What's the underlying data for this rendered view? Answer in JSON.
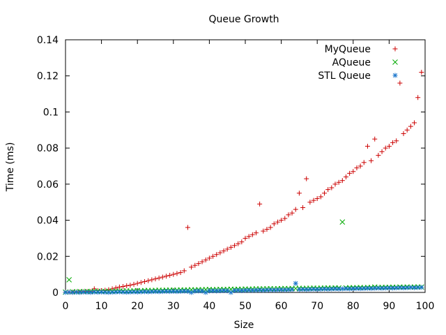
{
  "chart_data": {
    "type": "scatter",
    "title": "Queue Growth",
    "xlabel": "Size",
    "ylabel": "Time (ms)",
    "xlim": [
      0,
      100
    ],
    "ylim": [
      0,
      0.14
    ],
    "xticks": [
      "0",
      "10",
      "20",
      "30",
      "40",
      "50",
      "60",
      "70",
      "80",
      "90",
      "100"
    ],
    "yticks": [
      "0",
      "0.02",
      "0.04",
      "0.06",
      "0.08",
      "0.1",
      "0.12",
      "0.14"
    ],
    "grid": false,
    "legend_position": "top-right",
    "series": [
      {
        "name": "MyQueue",
        "marker": "plus",
        "color": "#cc0000",
        "x": [
          0,
          1,
          2,
          3,
          4,
          5,
          6,
          7,
          8,
          9,
          10,
          11,
          12,
          13,
          14,
          15,
          16,
          17,
          18,
          19,
          20,
          21,
          22,
          23,
          24,
          25,
          26,
          27,
          28,
          29,
          30,
          31,
          32,
          33,
          34,
          35,
          36,
          37,
          38,
          39,
          40,
          41,
          42,
          43,
          44,
          45,
          46,
          47,
          48,
          49,
          50,
          51,
          52,
          53,
          54,
          55,
          56,
          57,
          58,
          59,
          60,
          61,
          62,
          63,
          64,
          65,
          66,
          67,
          68,
          69,
          70,
          71,
          72,
          73,
          74,
          75,
          76,
          77,
          78,
          79,
          80,
          81,
          82,
          83,
          84,
          85,
          86,
          87,
          88,
          89,
          90,
          91,
          92,
          93,
          94,
          95,
          96,
          97,
          98,
          99
        ],
        "y": [
          0.0001,
          0.0002,
          0.0002,
          0.0003,
          0.0003,
          0.0004,
          0.0005,
          0.0005,
          0.002,
          0.001,
          0.001,
          0.0012,
          0.0015,
          0.002,
          0.0025,
          0.003,
          0.0033,
          0.0037,
          0.004,
          0.0045,
          0.005,
          0.0055,
          0.006,
          0.0065,
          0.007,
          0.0075,
          0.008,
          0.0085,
          0.009,
          0.0095,
          0.01,
          0.0105,
          0.011,
          0.012,
          0.036,
          0.014,
          0.015,
          0.016,
          0.017,
          0.018,
          0.019,
          0.02,
          0.021,
          0.022,
          0.023,
          0.024,
          0.025,
          0.026,
          0.027,
          0.028,
          0.03,
          0.031,
          0.032,
          0.033,
          0.049,
          0.034,
          0.035,
          0.036,
          0.038,
          0.039,
          0.04,
          0.041,
          0.043,
          0.044,
          0.046,
          0.055,
          0.047,
          0.063,
          0.05,
          0.051,
          0.052,
          0.053,
          0.055,
          0.057,
          0.058,
          0.06,
          0.061,
          0.062,
          0.064,
          0.066,
          0.067,
          0.069,
          0.07,
          0.072,
          0.081,
          0.073,
          0.085,
          0.076,
          0.078,
          0.08,
          0.081,
          0.083,
          0.084,
          0.116,
          0.088,
          0.09,
          0.092,
          0.094,
          0.108,
          0.122
        ]
      },
      {
        "name": "AQueue",
        "marker": "cross",
        "color": "#00aa00",
        "x": [
          0,
          1,
          2,
          3,
          4,
          5,
          6,
          7,
          8,
          9,
          10,
          11,
          12,
          13,
          14,
          15,
          16,
          17,
          18,
          19,
          20,
          21,
          22,
          23,
          24,
          25,
          26,
          27,
          28,
          29,
          30,
          31,
          32,
          33,
          34,
          35,
          36,
          37,
          38,
          39,
          40,
          41,
          42,
          43,
          44,
          45,
          46,
          47,
          48,
          49,
          50,
          51,
          52,
          53,
          54,
          55,
          56,
          57,
          58,
          59,
          60,
          61,
          62,
          63,
          64,
          65,
          66,
          67,
          68,
          69,
          70,
          71,
          72,
          73,
          74,
          75,
          76,
          77,
          78,
          79,
          80,
          81,
          82,
          83,
          84,
          85,
          86,
          87,
          88,
          89,
          90,
          91,
          92,
          93,
          94,
          95,
          96,
          97,
          98,
          99
        ],
        "y": [
          0.0002,
          0.007,
          0.0004,
          0.0003,
          0.0005,
          0.0004,
          0.0006,
          0.0005,
          0.0006,
          0.0007,
          0.0005,
          0.0006,
          0.0007,
          0.0006,
          0.0008,
          0.0007,
          0.0008,
          0.0009,
          0.0008,
          0.0009,
          0.001,
          0.0009,
          0.001,
          0.0011,
          0.001,
          0.0011,
          0.0012,
          0.0011,
          0.0012,
          0.0013,
          0.0012,
          0.0013,
          0.0014,
          0.0013,
          0.0014,
          0.0015,
          0.0014,
          0.0015,
          0.0015,
          0.0016,
          0.0016,
          0.0015,
          0.0016,
          0.0017,
          0.0016,
          0.0017,
          0.0018,
          0.0017,
          0.0018,
          0.0018,
          0.0019,
          0.0018,
          0.0019,
          0.002,
          0.0019,
          0.002,
          0.002,
          0.0021,
          0.002,
          0.0021,
          0.0021,
          0.0022,
          0.0021,
          0.0022,
          0.0022,
          0.0023,
          0.0022,
          0.0023,
          0.0023,
          0.0024,
          0.0023,
          0.0024,
          0.0024,
          0.0025,
          0.0024,
          0.0025,
          0.0025,
          0.039,
          0.0025,
          0.0026,
          0.0026,
          0.0026,
          0.0027,
          0.0026,
          0.0027,
          0.0027,
          0.003,
          0.0027,
          0.0028,
          0.0028,
          0.0028,
          0.0029,
          0.0028,
          0.003,
          0.0029,
          0.003,
          0.0029,
          0.003,
          0.003,
          0.003
        ]
      },
      {
        "name": "STL Queue",
        "marker": "star",
        "color": "#1a75cc",
        "x": [
          0,
          1,
          2,
          3,
          4,
          5,
          6,
          7,
          8,
          9,
          10,
          11,
          12,
          13,
          14,
          15,
          16,
          17,
          18,
          19,
          20,
          21,
          22,
          23,
          24,
          25,
          26,
          27,
          28,
          29,
          30,
          31,
          32,
          33,
          34,
          35,
          36,
          37,
          38,
          39,
          40,
          41,
          42,
          43,
          44,
          45,
          46,
          47,
          48,
          49,
          50,
          51,
          52,
          53,
          54,
          55,
          56,
          57,
          58,
          59,
          60,
          61,
          62,
          63,
          64,
          65,
          66,
          67,
          68,
          69,
          70,
          71,
          72,
          73,
          74,
          75,
          76,
          77,
          78,
          79,
          80,
          81,
          82,
          83,
          84,
          85,
          86,
          87,
          88,
          89,
          90,
          91,
          92,
          93,
          94,
          95,
          96,
          97,
          98,
          99
        ],
        "y": [
          0.0,
          0.0001,
          0.0,
          0.0001,
          0.0,
          0.0002,
          0.0001,
          0.0,
          0.0002,
          0.0001,
          0.0002,
          0.0001,
          0.0,
          0.0001,
          0.0002,
          0.0003,
          0.0002,
          0.0001,
          0.0002,
          0.0003,
          0.0002,
          0.0003,
          0.0004,
          0.0003,
          0.0004,
          0.0005,
          0.0004,
          0.0005,
          0.0006,
          0.0005,
          0.0006,
          0.0005,
          0.0006,
          0.0007,
          0.0006,
          0.0,
          0.0007,
          0.0008,
          0.0007,
          0.0,
          0.0008,
          0.0009,
          0.0008,
          0.0009,
          0.001,
          0.0009,
          0.0,
          0.001,
          0.0011,
          0.001,
          0.0011,
          0.0012,
          0.0011,
          0.0012,
          0.0013,
          0.0012,
          0.0013,
          0.0014,
          0.0013,
          0.0014,
          0.0015,
          0.0014,
          0.0015,
          0.0016,
          0.005,
          0.0016,
          0.0017,
          0.0016,
          0.0017,
          0.0018,
          0.0017,
          0.0018,
          0.0019,
          0.0018,
          0.0019,
          0.002,
          0.0019,
          0.002,
          0.0021,
          0.002,
          0.0021,
          0.0022,
          0.0021,
          0.0022,
          0.0023,
          0.0022,
          0.0023,
          0.0024,
          0.0023,
          0.0024,
          0.0025,
          0.0024,
          0.0025,
          0.0026,
          0.0025,
          0.0026,
          0.0027,
          0.0026,
          0.0027,
          0.0028
        ]
      }
    ]
  }
}
